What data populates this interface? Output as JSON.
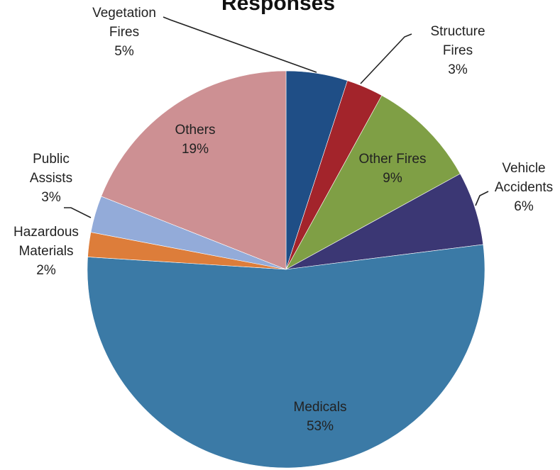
{
  "chart_data": {
    "type": "pie",
    "title": "Responses",
    "start_angle_deg": 0,
    "direction": "clockwise",
    "slices": [
      {
        "name": "Vegetation Fires",
        "label_lines": [
          "Vegetation",
          "Fires"
        ],
        "percent_label": "5%",
        "value": 5,
        "color": "#1f4e86"
      },
      {
        "name": "Structure Fires",
        "label_lines": [
          "Structure",
          "Fires"
        ],
        "percent_label": "3%",
        "value": 3,
        "color": "#a3242b"
      },
      {
        "name": "Other Fires",
        "label_lines": [
          "Other Fires"
        ],
        "percent_label": "9%",
        "value": 9,
        "color": "#7f9f45"
      },
      {
        "name": "Vehicle Accidents",
        "label_lines": [
          "Vehicle",
          "Accidents"
        ],
        "percent_label": "6%",
        "value": 6,
        "color": "#3b3774"
      },
      {
        "name": "Medicals",
        "label_lines": [
          "Medicals"
        ],
        "percent_label": "53%",
        "value": 53,
        "color": "#3b7aa6"
      },
      {
        "name": "Hazardous Materials",
        "label_lines": [
          "Hazardous",
          "Materials"
        ],
        "percent_label": "2%",
        "value": 2,
        "color": "#dd7d3a"
      },
      {
        "name": "Public Assists",
        "label_lines": [
          "Public",
          "Assists"
        ],
        "percent_label": "3%",
        "value": 3,
        "color": "#93abd9"
      },
      {
        "name": "Others",
        "label_lines": [
          "Others"
        ],
        "percent_label": "19%",
        "value": 19,
        "color": "#cd9093"
      }
    ]
  }
}
